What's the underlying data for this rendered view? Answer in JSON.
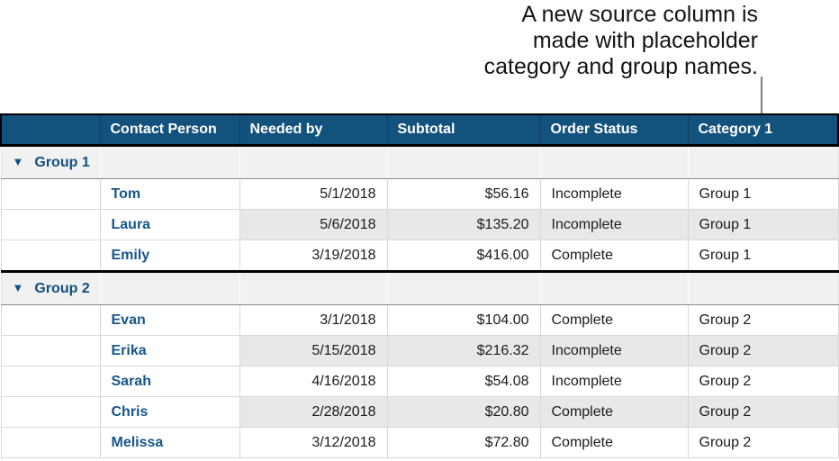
{
  "annotation": {
    "lines": [
      "A new source column is",
      "made with placeholder",
      "category and group names."
    ]
  },
  "icons": {
    "disclosure_down": "▼"
  },
  "colors": {
    "header_bg": "#14527E",
    "header_text": "#FFFFFF",
    "group_label_text": "#11507E",
    "contact_name_text": "#16568C",
    "group_row_bg": "#F1F1F2",
    "banded_row_bg": "#E8E8E9",
    "gridline": "#D8D8D8",
    "section_divider": "#000000",
    "callout_line": "#808080"
  },
  "table": {
    "headers": [
      "",
      "Contact Person",
      "Needed by",
      "Subtotal",
      "Order Status",
      "Category 1"
    ],
    "rows": [
      {
        "kind": "group",
        "label": "Group 1"
      },
      {
        "kind": "data",
        "contact": "Tom",
        "needed_by": "5/1/2018",
        "subtotal": "$56.16",
        "status": "Incomplete",
        "category": "Group 1"
      },
      {
        "kind": "data",
        "contact": "Laura",
        "needed_by": "5/6/2018",
        "subtotal": "$135.20",
        "status": "Incomplete",
        "category": "Group 1"
      },
      {
        "kind": "data",
        "contact": "Emily",
        "needed_by": "3/19/2018",
        "subtotal": "$416.00",
        "status": "Complete",
        "category": "Group 1"
      },
      {
        "kind": "group",
        "label": "Group 2"
      },
      {
        "kind": "data",
        "contact": "Evan",
        "needed_by": "3/1/2018",
        "subtotal": "$104.00",
        "status": "Complete",
        "category": "Group 2"
      },
      {
        "kind": "data",
        "contact": "Erika",
        "needed_by": "5/15/2018",
        "subtotal": "$216.32",
        "status": "Incomplete",
        "category": "Group 2"
      },
      {
        "kind": "data",
        "contact": "Sarah",
        "needed_by": "4/16/2018",
        "subtotal": "$54.08",
        "status": "Incomplete",
        "category": "Group 2"
      },
      {
        "kind": "data",
        "contact": "Chris",
        "needed_by": "2/28/2018",
        "subtotal": "$20.80",
        "status": "Complete",
        "category": "Group 2"
      },
      {
        "kind": "data",
        "contact": "Melissa",
        "needed_by": "3/12/2018",
        "subtotal": "$72.80",
        "status": "Complete",
        "category": "Group 2"
      }
    ]
  }
}
